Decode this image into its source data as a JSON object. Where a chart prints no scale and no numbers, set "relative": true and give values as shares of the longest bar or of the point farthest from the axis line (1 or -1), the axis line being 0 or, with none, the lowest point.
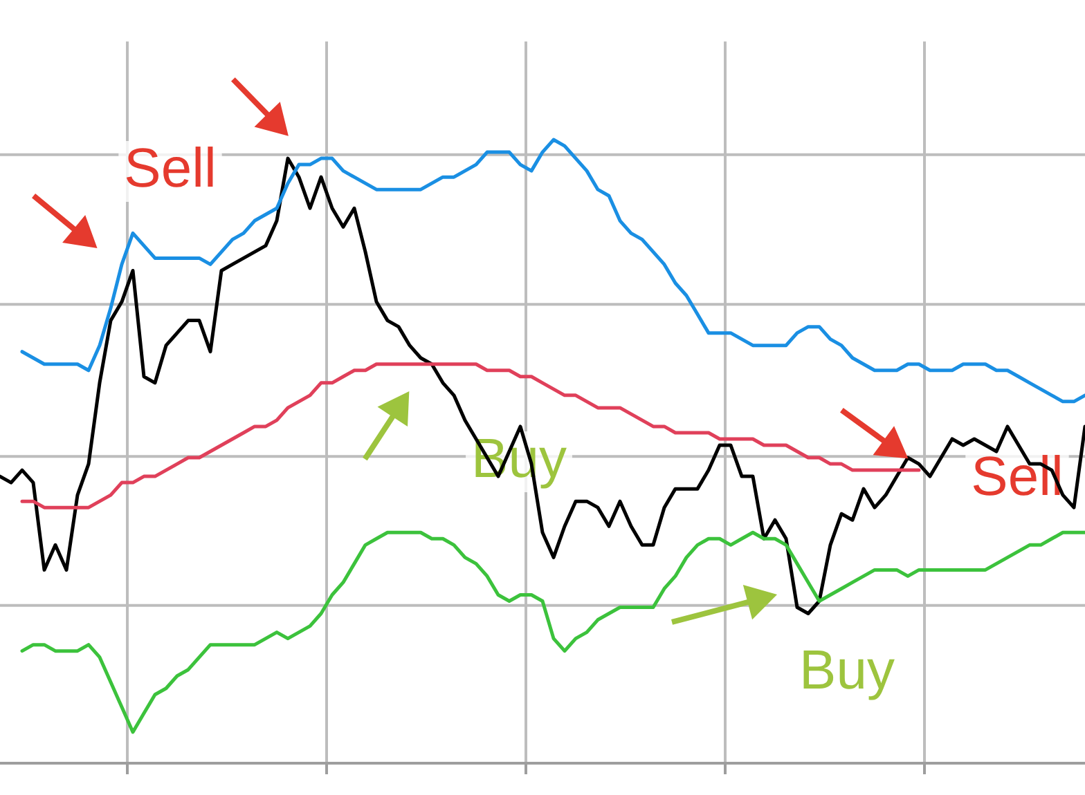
{
  "chart_data": {
    "type": "line",
    "relative": true,
    "grid": true,
    "legend": false,
    "marker": "none",
    "line_style": "solid",
    "categories": [
      null,
      null,
      null,
      null,
      null,
      null,
      null,
      null,
      null,
      null,
      null,
      null,
      null,
      null,
      null,
      null,
      null,
      null,
      null,
      null,
      null,
      null,
      null,
      null,
      null,
      null,
      null,
      null,
      null,
      null,
      null,
      null,
      null,
      null,
      null,
      null,
      null,
      null,
      null,
      null,
      null,
      null,
      null,
      null,
      null,
      null,
      null,
      null,
      null,
      null,
      null,
      null,
      null,
      null,
      null,
      null,
      null,
      null,
      null,
      null,
      null,
      null,
      null,
      null,
      null,
      null,
      null,
      null,
      null,
      null,
      null,
      null,
      null,
      null,
      null,
      null,
      null,
      null,
      null,
      null,
      null,
      null,
      null,
      null,
      null,
      null,
      null,
      null,
      null,
      null,
      null,
      null,
      null,
      null,
      null,
      null,
      null,
      null,
      null
    ],
    "series": [
      {
        "color": "#1a8fe3",
        "values": [
          null,
          null,
          0.66,
          0.65,
          0.64,
          0.64,
          0.64,
          0.64,
          0.63,
          0.67,
          0.73,
          0.8,
          0.85,
          0.83,
          0.81,
          0.81,
          0.81,
          0.81,
          0.81,
          0.8,
          0.82,
          0.84,
          0.85,
          0.87,
          0.88,
          0.89,
          0.93,
          0.96,
          0.96,
          0.97,
          0.97,
          0.95,
          0.94,
          0.93,
          0.92,
          0.92,
          0.92,
          0.92,
          0.92,
          0.93,
          0.94,
          0.94,
          0.95,
          0.96,
          0.98,
          0.98,
          0.98,
          0.96,
          0.95,
          0.98,
          1.0,
          0.99,
          0.97,
          0.95,
          0.92,
          0.91,
          0.87,
          0.85,
          0.84,
          0.82,
          0.8,
          0.77,
          0.75,
          0.72,
          0.69,
          0.69,
          0.69,
          0.68,
          0.67,
          0.67,
          0.67,
          0.67,
          0.69,
          0.7,
          0.7,
          0.68,
          0.67,
          0.65,
          0.64,
          0.63,
          0.63,
          0.63,
          0.64,
          0.64,
          0.63,
          0.63,
          0.63,
          0.64,
          0.64,
          0.64,
          0.63,
          0.63,
          0.62,
          0.61,
          0.6,
          0.59,
          0.58,
          0.58,
          0.59
        ]
      },
      {
        "color": "#e0405a",
        "values": [
          null,
          null,
          0.42,
          0.42,
          0.41,
          0.41,
          0.41,
          0.41,
          0.41,
          0.42,
          0.43,
          0.45,
          0.45,
          0.46,
          0.46,
          0.47,
          0.48,
          0.49,
          0.49,
          0.5,
          0.51,
          0.52,
          0.53,
          0.54,
          0.54,
          0.55,
          0.57,
          0.58,
          0.59,
          0.61,
          0.61,
          0.62,
          0.63,
          0.63,
          0.64,
          0.64,
          0.64,
          0.64,
          0.64,
          0.64,
          0.64,
          0.64,
          0.64,
          0.64,
          0.63,
          0.63,
          0.63,
          0.62,
          0.62,
          0.61,
          0.6,
          0.59,
          0.59,
          0.58,
          0.57,
          0.57,
          0.57,
          0.56,
          0.55,
          0.54,
          0.54,
          0.53,
          0.53,
          0.53,
          0.53,
          0.52,
          0.52,
          0.52,
          0.52,
          0.51,
          0.51,
          0.51,
          0.5,
          0.49,
          0.49,
          0.48,
          0.48,
          0.47,
          0.47,
          0.47,
          0.47,
          0.47,
          0.47,
          0.47,
          null,
          null,
          null,
          null,
          null,
          null,
          null,
          null,
          null,
          null,
          null,
          null,
          null,
          null,
          null
        ]
      },
      {
        "color": "#3cc23c",
        "values": [
          null,
          null,
          0.18,
          0.19,
          0.19,
          0.18,
          0.18,
          0.18,
          0.19,
          0.17,
          0.13,
          0.09,
          0.05,
          0.08,
          0.11,
          0.12,
          0.14,
          0.15,
          0.17,
          0.19,
          0.19,
          0.19,
          0.19,
          0.19,
          0.2,
          0.21,
          0.2,
          0.21,
          0.22,
          0.24,
          0.27,
          0.29,
          0.32,
          0.35,
          0.36,
          0.37,
          0.37,
          0.37,
          0.37,
          0.36,
          0.36,
          0.35,
          0.33,
          0.32,
          0.3,
          0.27,
          0.26,
          0.27,
          0.27,
          0.26,
          0.2,
          0.18,
          0.2,
          0.21,
          0.23,
          0.24,
          0.25,
          0.25,
          0.25,
          0.25,
          0.28,
          0.3,
          0.33,
          0.35,
          0.36,
          0.36,
          0.35,
          0.36,
          0.37,
          0.36,
          0.36,
          0.35,
          0.32,
          0.29,
          0.26,
          0.27,
          0.28,
          0.29,
          0.3,
          0.31,
          0.31,
          0.31,
          0.3,
          0.31,
          0.31,
          0.31,
          0.31,
          0.31,
          0.31,
          0.31,
          0.32,
          0.33,
          0.34,
          0.35,
          0.35,
          0.36,
          0.37,
          0.37,
          0.37
        ]
      },
      {
        "color": "#000000",
        "values": [
          0.46,
          0.45,
          0.47,
          0.45,
          0.31,
          0.35,
          0.31,
          0.43,
          0.48,
          0.61,
          0.71,
          0.74,
          0.79,
          0.62,
          0.61,
          0.67,
          0.69,
          0.71,
          0.71,
          0.66,
          0.79,
          0.8,
          0.81,
          0.82,
          0.83,
          0.87,
          0.97,
          0.94,
          0.89,
          0.94,
          0.89,
          0.86,
          0.89,
          0.82,
          0.74,
          0.71,
          0.7,
          0.67,
          0.65,
          0.64,
          0.61,
          0.59,
          0.55,
          0.52,
          0.49,
          0.46,
          0.5,
          0.54,
          0.48,
          0.37,
          0.33,
          0.38,
          0.42,
          0.42,
          0.41,
          0.38,
          0.42,
          0.38,
          0.35,
          0.35,
          0.41,
          0.44,
          0.44,
          0.44,
          0.47,
          0.51,
          0.51,
          0.46,
          0.46,
          0.36,
          0.39,
          0.36,
          0.25,
          0.24,
          0.26,
          0.35,
          0.4,
          0.39,
          0.44,
          0.41,
          0.43,
          0.46,
          0.49,
          0.48,
          0.46,
          0.49,
          0.52,
          0.51,
          0.52,
          0.51,
          0.5,
          0.54,
          0.51,
          0.48,
          0.48,
          0.47,
          0.43,
          0.41,
          0.54
        ]
      }
    ],
    "annotations": [
      "Sell",
      "Buy",
      "Buy",
      "Sell"
    ]
  }
}
